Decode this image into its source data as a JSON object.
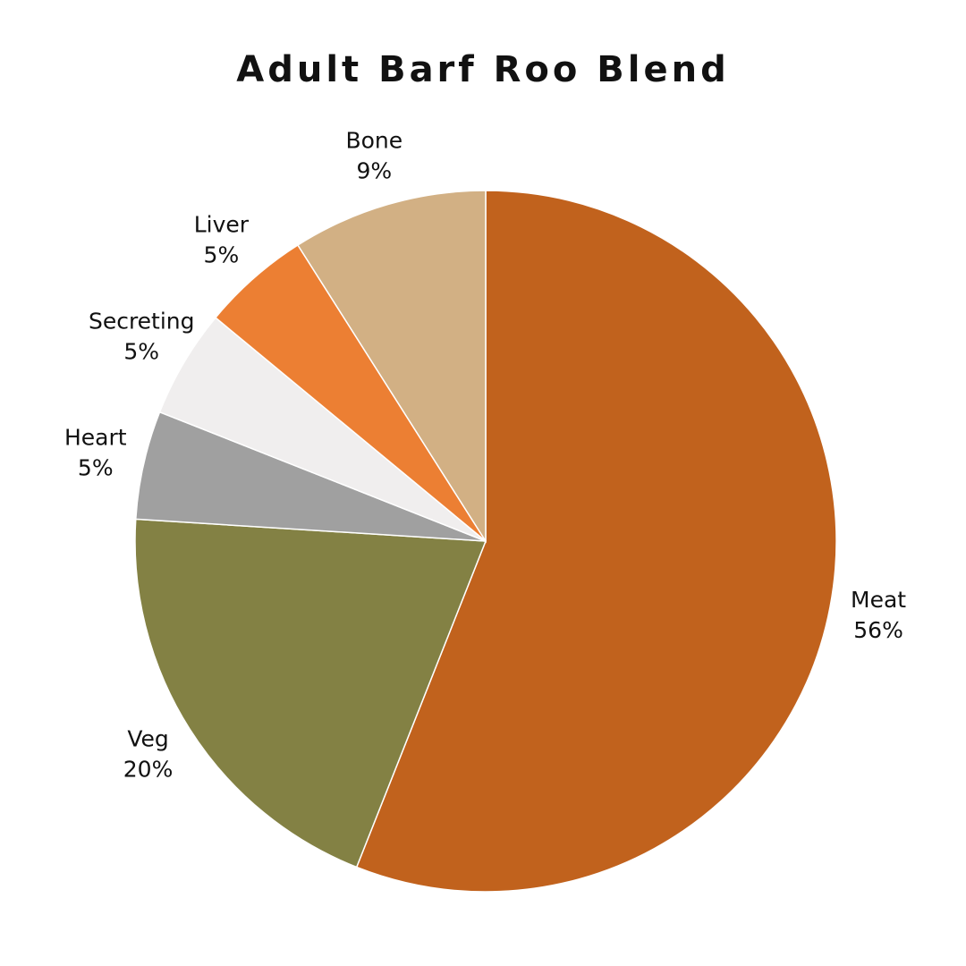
{
  "chart_data": {
    "type": "pie",
    "title": "Adult Barf Roo Blend",
    "categories": [
      "Meat",
      "Veg",
      "Heart",
      "Secreting",
      "Liver",
      "Bone"
    ],
    "values": [
      56,
      20,
      5,
      5,
      5,
      9
    ],
    "value_labels": [
      "56%",
      "20%",
      "5%",
      "5%",
      "5%",
      "9%"
    ],
    "colors": [
      "#c1621d",
      "#838144",
      "#a0a0a0",
      "#f0eeee",
      "#ec7f33",
      "#d2b084"
    ]
  }
}
